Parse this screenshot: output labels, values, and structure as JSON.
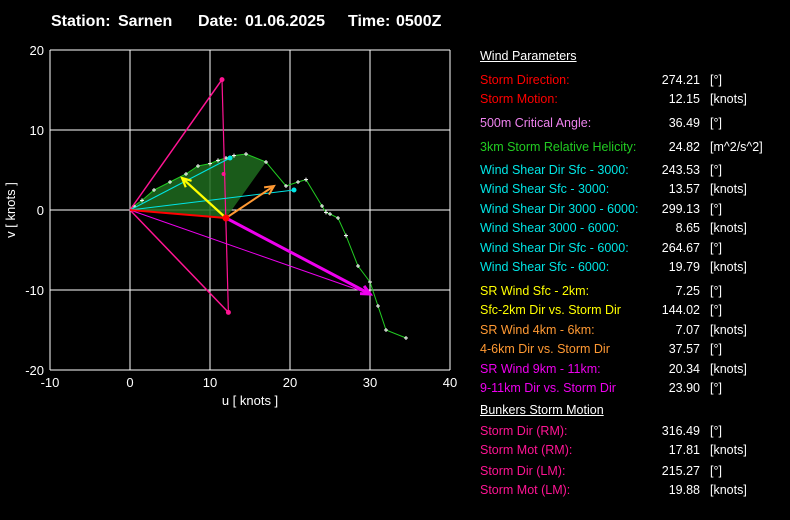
{
  "header": {
    "station_label": "Station:",
    "station": "Sarnen",
    "date_label": "Date:",
    "date": "01.06.2025",
    "time_label": "Time:",
    "time": "0500Z"
  },
  "params": {
    "wind_header": "Wind Parameters",
    "bunkers_header": "Bunkers Storm Motion",
    "rows": [
      {
        "label": "Storm Direction:",
        "value": "274.21",
        "unit": "[°]",
        "color": "#ff0000"
      },
      {
        "label": "Storm Motion:",
        "value": "12.15",
        "unit": "[knots]",
        "color": "#ff0000"
      },
      {
        "label": "500m Critical Angle:",
        "value": "36.49",
        "unit": "[°]",
        "color": "#ee82ee"
      },
      {
        "label": "3km Storm Relative Helicity:",
        "value": "24.82",
        "unit": "[m^2/s^2]",
        "color": "#22cc22"
      },
      {
        "label": "Wind Shear Dir Sfc - 3000:",
        "value": "243.53",
        "unit": "[°]",
        "color": "#00e5e5"
      },
      {
        "label": "Wind Shear Sfc - 3000:",
        "value": "13.57",
        "unit": "[knots]",
        "color": "#00e5e5"
      },
      {
        "label": "Wind Shear Dir 3000 - 6000:",
        "value": "299.13",
        "unit": "[°]",
        "color": "#00e5e5"
      },
      {
        "label": "Wind Shear 3000 - 6000:",
        "value": "8.65",
        "unit": "[knots]",
        "color": "#00e5e5"
      },
      {
        "label": "Wind Shear Dir Sfc - 6000:",
        "value": "264.67",
        "unit": "[°]",
        "color": "#00e5e5"
      },
      {
        "label": "Wind Shear Sfc - 6000:",
        "value": "19.79",
        "unit": "[knots]",
        "color": "#00e5e5"
      },
      {
        "label": "SR Wind Sfc - 2km:",
        "value": "7.25",
        "unit": "[°]",
        "color": "#ffff00"
      },
      {
        "label": "Sfc-2km Dir vs. Storm Dir",
        "value": "144.02",
        "unit": "[°]",
        "color": "#ffff00"
      },
      {
        "label": "SR Wind 4km - 6km:",
        "value": "7.07",
        "unit": "[knots]",
        "color": "#ff9933"
      },
      {
        "label": "4-6km Dir vs. Storm Dir",
        "value": "37.57",
        "unit": "[°]",
        "color": "#ff9933"
      },
      {
        "label": "SR Wind 9km - 11km:",
        "value": "20.34",
        "unit": "[knots]",
        "color": "#ee00ee"
      },
      {
        "label": "9-11km Dir vs. Storm Dir",
        "value": "23.90",
        "unit": "[°]",
        "color": "#ee00ee"
      },
      {
        "label": "Storm Dir (RM):",
        "value": "316.49",
        "unit": "[°]",
        "color": "#ff1493"
      },
      {
        "label": "Storm Mot (RM):",
        "value": "17.81",
        "unit": "[knots]",
        "color": "#ff1493"
      },
      {
        "label": "Storm Dir (LM):",
        "value": "215.27",
        "unit": "[°]",
        "color": "#ff1493"
      },
      {
        "label": "Storm Mot (LM):",
        "value": "19.88",
        "unit": "[knots]",
        "color": "#ff1493"
      }
    ]
  },
  "chart_data": {
    "type": "scatter",
    "title": "",
    "xlabel": "u  [ knots ]",
    "ylabel": "v  [ knots ]",
    "xlim": [
      -10,
      40
    ],
    "ylim": [
      -20,
      20
    ],
    "x_ticks": [
      "-10",
      "0",
      "10",
      "20",
      "30",
      "40"
    ],
    "y_ticks": [
      "-20",
      "-10",
      "0",
      "10",
      "20"
    ],
    "grid": true,
    "hodograph": {
      "color": "#22cc22",
      "points": [
        [
          0,
          0
        ],
        [
          0.5,
          0.5
        ],
        [
          1.5,
          1.2
        ],
        [
          3,
          2.5
        ],
        [
          5,
          3.5
        ],
        [
          7,
          4.5
        ],
        [
          8.5,
          5.5
        ],
        [
          10,
          5.8
        ],
        [
          11,
          6.2
        ],
        [
          12,
          6.5
        ],
        [
          13,
          6.8
        ],
        [
          14.5,
          7
        ],
        [
          17,
          6
        ],
        [
          19.5,
          3
        ],
        [
          21,
          3.5
        ],
        [
          22,
          3.8
        ],
        [
          24,
          0.5
        ],
        [
          24.5,
          -0.3
        ],
        [
          25,
          -0.5
        ],
        [
          26,
          -1
        ],
        [
          27,
          -3.2
        ],
        [
          28.5,
          -7
        ],
        [
          30,
          -9
        ],
        [
          31,
          -12
        ],
        [
          32,
          -15
        ],
        [
          34.5,
          -16
        ]
      ]
    },
    "storm_motion": {
      "color": "#ff0000",
      "u": 12,
      "v": -1
    },
    "bunkers_rm": {
      "color": "#ff1493",
      "u": 12.3,
      "v": -12.8
    },
    "bunkers_lm": {
      "color": "#ff1493",
      "u": 11.5,
      "v": 16.3
    },
    "shear_sfc_3km": {
      "color": "#00e5e5",
      "u": 12.5,
      "v": 6.5
    },
    "shear_sfc_6km": {
      "color": "#00e5e5",
      "u": 20.5,
      "v": 2.5
    },
    "sr_wind_sfc_2km": {
      "color": "#ffff00",
      "u": 6.5,
      "v": 4
    },
    "sr_wind_4_6km": {
      "color": "#ff9933",
      "u": 18,
      "v": 3
    },
    "sr_wind_9_11km": {
      "color": "#ee00ee",
      "u": 30,
      "v": -10.5
    }
  }
}
